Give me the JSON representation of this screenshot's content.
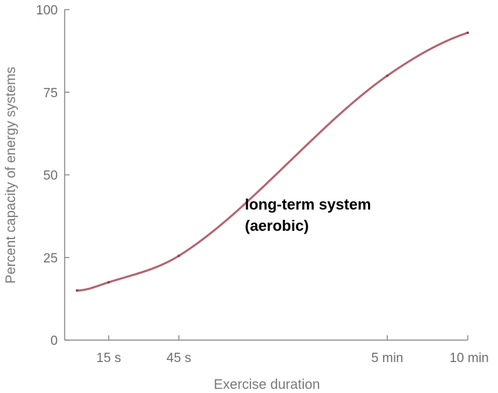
{
  "chart_data": {
    "type": "line",
    "title": "",
    "xlabel": "Exercise duration",
    "ylabel": "Percent capacity of energy systems",
    "ylim": [
      0,
      100
    ],
    "y_ticks": [
      0,
      25,
      50,
      75,
      100
    ],
    "x_ticks": [
      "15 s",
      "45 s",
      "5 min",
      "10 min"
    ],
    "grid": false,
    "series": [
      {
        "name": "long-term system (aerobic)",
        "color": "#b5646e",
        "x": [
          "5 s",
          "15 s",
          "45 s",
          "5 min",
          "10 min"
        ],
        "values": [
          15,
          17.5,
          25.5,
          80,
          93
        ]
      }
    ],
    "annotations": [
      {
        "lines": [
          "long-term system",
          "(aerobic)"
        ]
      }
    ]
  }
}
